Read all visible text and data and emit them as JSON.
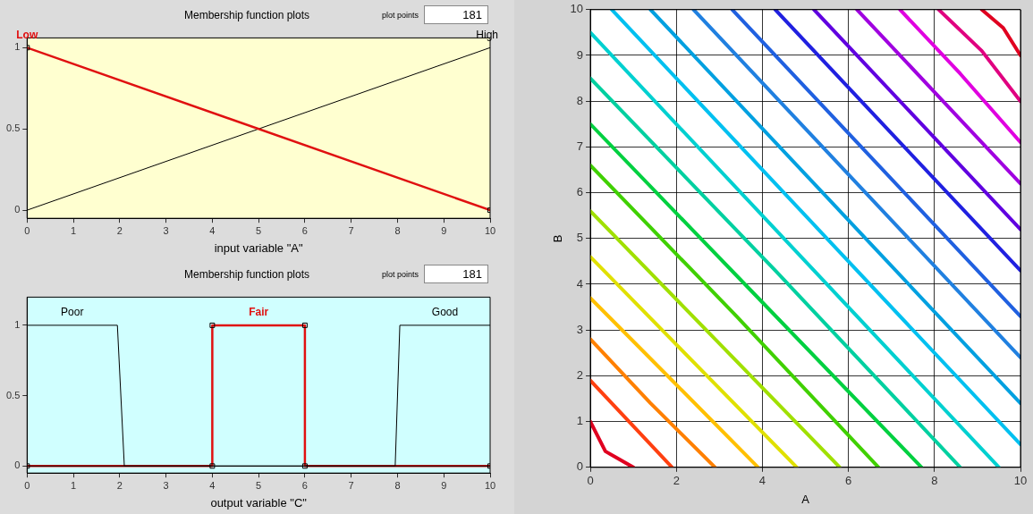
{
  "chart_data": [
    {
      "type": "line",
      "title": "Membership function plots",
      "xlabel": "input variable \"A\"",
      "xlim": [
        0,
        10
      ],
      "ylim": [
        -0.05,
        1.06
      ],
      "xticks": [
        0,
        1,
        2,
        3,
        4,
        5,
        6,
        7,
        8,
        9,
        10
      ],
      "yticks": [
        0,
        0.5,
        1
      ],
      "grid": false,
      "annotations": [
        "plot points",
        "181"
      ],
      "series": [
        {
          "name": "Low",
          "color": "#e01010",
          "x": [
            0,
            10
          ],
          "values": [
            1,
            0
          ],
          "marker": "square"
        },
        {
          "name": "High",
          "color": "#000000",
          "x": [
            0,
            10
          ],
          "values": [
            0,
            1
          ],
          "marker": "none"
        }
      ]
    },
    {
      "type": "line",
      "title": "Membership function plots",
      "xlabel": "output variable \"C\"",
      "xlim": [
        0,
        10
      ],
      "ylim": [
        -0.05,
        1.2
      ],
      "xticks": [
        0,
        1,
        2,
        3,
        4,
        5,
        6,
        7,
        8,
        9,
        10
      ],
      "yticks": [
        0,
        0.5,
        1
      ],
      "grid": false,
      "annotations": [
        "plot points",
        "181"
      ],
      "series": [
        {
          "name": "Poor",
          "color": "#000000",
          "x": [
            0,
            1.95,
            2.1,
            10
          ],
          "values": [
            1,
            1,
            0,
            0
          ],
          "marker": "none"
        },
        {
          "name": "Good",
          "color": "#000000",
          "x": [
            0,
            7.95,
            8.05,
            10
          ],
          "values": [
            0,
            0,
            1,
            1
          ],
          "marker": "none"
        },
        {
          "name": "Fair",
          "color": "#e01010",
          "x": [
            0,
            4,
            4,
            6,
            6,
            10
          ],
          "values": [
            0,
            0,
            1,
            1,
            0,
            0
          ],
          "marker": "square"
        }
      ]
    },
    {
      "type": "line",
      "xlabel": "A",
      "ylabel": "B",
      "xlim": [
        0,
        10
      ],
      "ylim": [
        0,
        10
      ],
      "xticks": [
        0,
        2,
        4,
        6,
        8,
        10
      ],
      "yticks": [
        0,
        1,
        2,
        3,
        4,
        5,
        6,
        7,
        8,
        9,
        10
      ],
      "grid": true,
      "series": [
        {
          "color": "#e00020",
          "x": [
            0,
            0.35,
            1
          ],
          "values": [
            1,
            0.35,
            0
          ]
        },
        {
          "color": "#ff4010",
          "x": [
            0,
            0.9,
            1.9
          ],
          "values": [
            1.9,
            1,
            0
          ]
        },
        {
          "color": "#ff8000",
          "x": [
            0,
            1.4,
            2.9
          ],
          "values": [
            2.8,
            1.4,
            0
          ]
        },
        {
          "color": "#ffc000",
          "x": [
            0,
            1.9,
            3.9
          ],
          "values": [
            3.7,
            1.9,
            0
          ]
        },
        {
          "color": "#e0e000",
          "x": [
            0,
            2.4,
            4.8
          ],
          "values": [
            4.6,
            2.3,
            0
          ]
        },
        {
          "color": "#a0e000",
          "x": [
            0,
            2.9,
            5.8
          ],
          "values": [
            5.6,
            2.8,
            0
          ]
        },
        {
          "color": "#40d000",
          "x": [
            0,
            3.4,
            6.7
          ],
          "values": [
            6.6,
            3.3,
            0
          ]
        },
        {
          "color": "#00d040",
          "x": [
            0,
            3.8,
            7.7
          ],
          "values": [
            7.5,
            3.8,
            0
          ]
        },
        {
          "color": "#00d0a0",
          "x": [
            0,
            4.3,
            8.6
          ],
          "values": [
            8.5,
            4.3,
            0
          ]
        },
        {
          "color": "#00d0d0",
          "x": [
            0,
            4.8,
            9.5
          ],
          "values": [
            9.5,
            4.7,
            0
          ]
        },
        {
          "color": "#00c0f0",
          "x": [
            0.5,
            5.2,
            10
          ],
          "values": [
            10,
            5.3,
            0.5
          ]
        },
        {
          "color": "#00a0e0",
          "x": [
            1.4,
            5.7,
            10
          ],
          "values": [
            10,
            5.7,
            1.4
          ]
        },
        {
          "color": "#2080e0",
          "x": [
            2.4,
            6.2,
            10
          ],
          "values": [
            10,
            6.2,
            2.4
          ]
        },
        {
          "color": "#2060e0",
          "x": [
            3.3,
            6.7,
            10
          ],
          "values": [
            10,
            6.6,
            3.3
          ]
        },
        {
          "color": "#2020e0",
          "x": [
            4.3,
            7.2,
            10
          ],
          "values": [
            10,
            7.1,
            4.3
          ]
        },
        {
          "color": "#6000e0",
          "x": [
            5.2,
            7.6,
            10
          ],
          "values": [
            10,
            7.6,
            5.2
          ]
        },
        {
          "color": "#a000e0",
          "x": [
            6.2,
            8.1,
            10
          ],
          "values": [
            10,
            8.1,
            6.2
          ]
        },
        {
          "color": "#e000e0",
          "x": [
            7.2,
            8.6,
            10
          ],
          "values": [
            10,
            8.6,
            7.1
          ]
        },
        {
          "color": "#e00080",
          "x": [
            8.1,
            9.1,
            10
          ],
          "values": [
            10,
            9.1,
            8
          ]
        },
        {
          "color": "#e00020",
          "x": [
            9.1,
            9.6,
            10
          ],
          "values": [
            10,
            9.6,
            9
          ]
        }
      ]
    }
  ]
}
